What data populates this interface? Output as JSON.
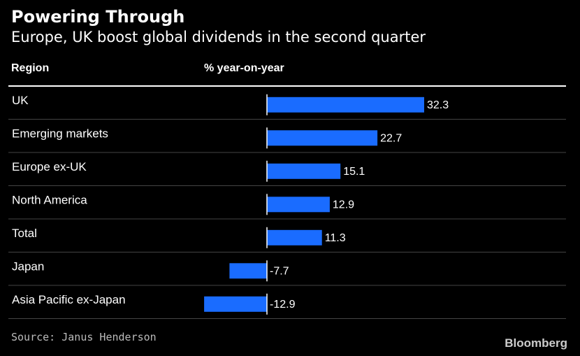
{
  "title": "Powering Through",
  "subtitle": "Europe, UK boost global dividends in the second quarter",
  "columns": {
    "region": "Region",
    "value": "% year-on-year"
  },
  "source": "Source: Janus Henderson",
  "brand": "Bloomberg",
  "colors": {
    "bar": "#1a6cff",
    "background": "#000000",
    "text": "#ffffff",
    "rule": "#ffffff",
    "row_divider": "#444444"
  },
  "chart_data": {
    "type": "bar",
    "orientation": "horizontal",
    "title": "Powering Through",
    "subtitle": "Europe, UK boost global dividends in the second quarter",
    "xlabel": "% year-on-year",
    "ylabel": "Region",
    "categories": [
      "UK",
      "Emerging markets",
      "Europe ex-UK",
      "North America",
      "Total",
      "Japan",
      "Asia Pacific ex-Japan"
    ],
    "values": [
      32.3,
      22.7,
      15.1,
      12.9,
      11.3,
      -7.7,
      -12.9
    ],
    "data_labels": [
      "32.3",
      "22.7",
      "15.1",
      "12.9",
      "11.3",
      "-7.7",
      "-12.9"
    ],
    "xlim": [
      -14,
      34
    ],
    "grid": false,
    "legend": "none"
  }
}
